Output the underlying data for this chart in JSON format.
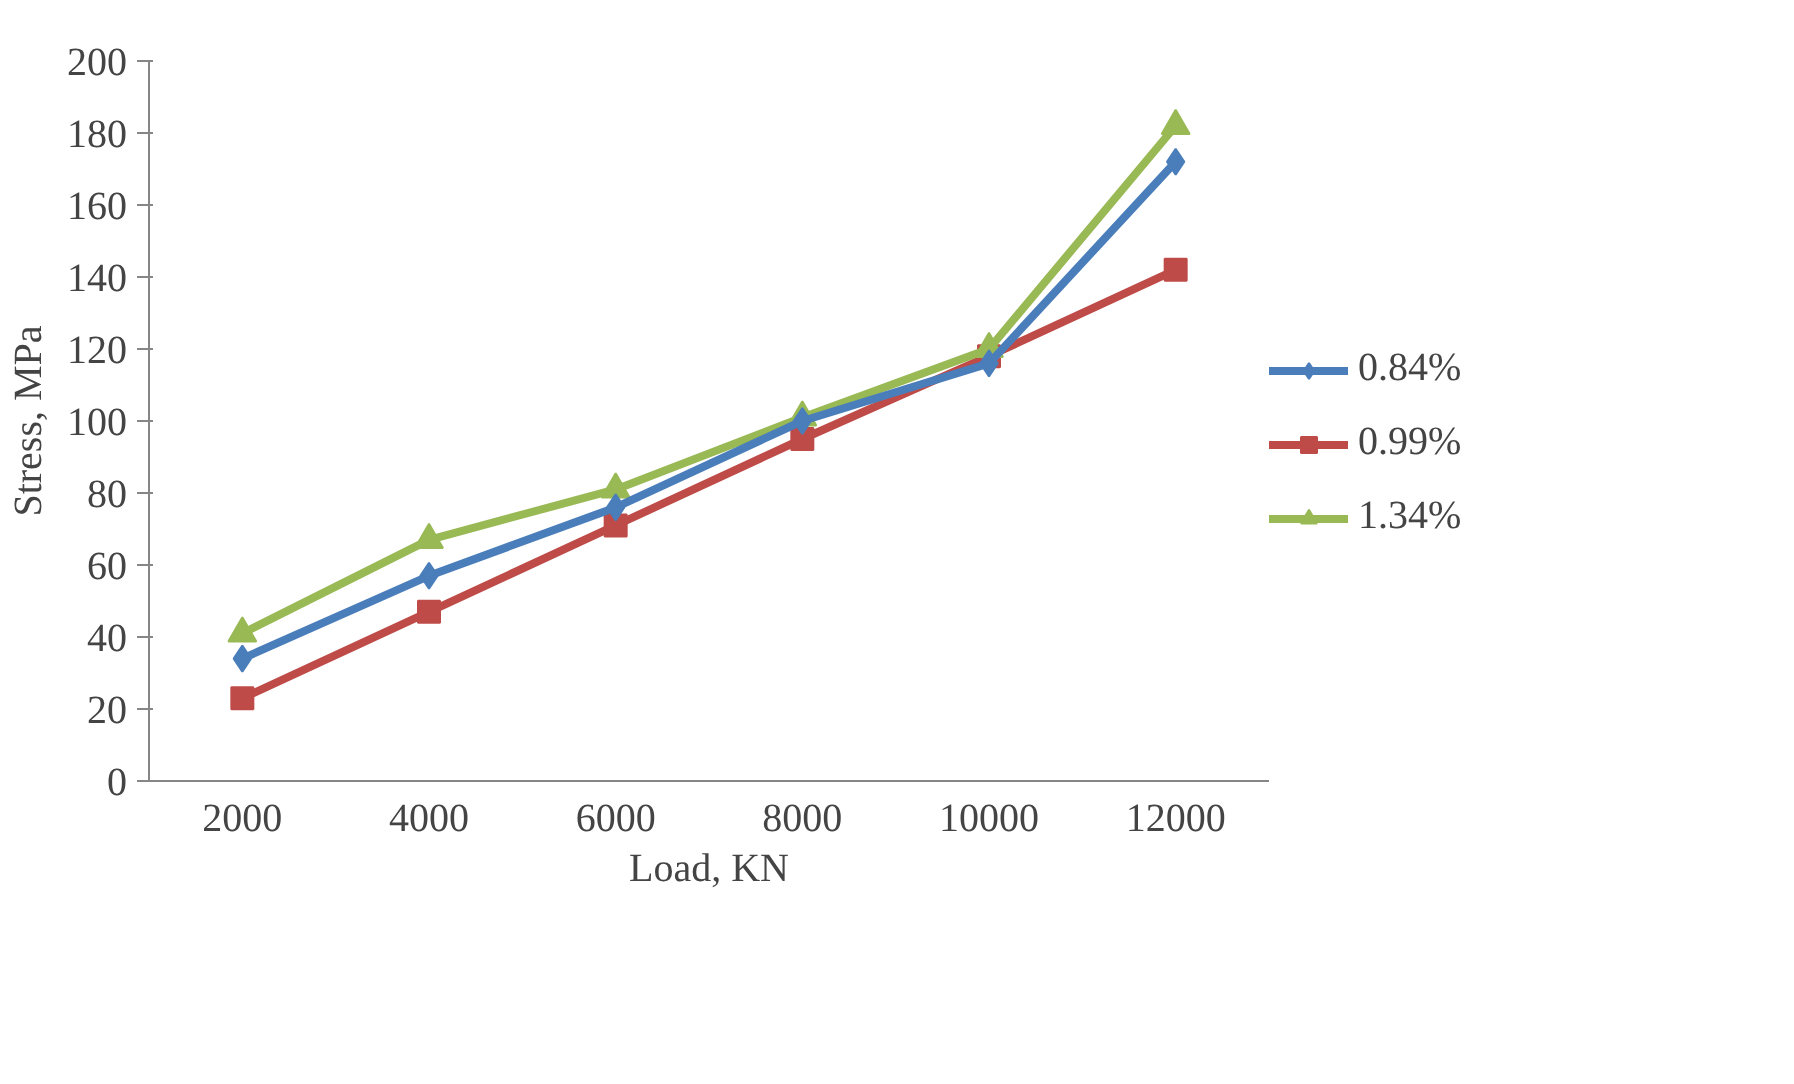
{
  "chart_data": {
    "type": "line",
    "xlabel": "Load, KN",
    "ylabel": "Stress, MPa",
    "categories": [
      "2000",
      "4000",
      "6000",
      "8000",
      "10000",
      "12000"
    ],
    "series": [
      {
        "name": "0.84%",
        "color": "#4a7ebb",
        "marker": "diamond",
        "values": [
          34,
          57,
          76,
          100,
          116,
          172
        ]
      },
      {
        "name": "0.99%",
        "color": "#be4b48",
        "marker": "square",
        "values": [
          23,
          47,
          71,
          95,
          118,
          142
        ]
      },
      {
        "name": "1.34%",
        "color": "#98b954",
        "marker": "triangle",
        "values": [
          41,
          67,
          81,
          101,
          120,
          182
        ]
      }
    ],
    "ylim": [
      0,
      200
    ],
    "yticks": [
      0,
      20,
      40,
      60,
      80,
      100,
      120,
      140,
      160,
      180,
      200
    ],
    "grid": false,
    "legend": "right",
    "line_style": "solid"
  }
}
